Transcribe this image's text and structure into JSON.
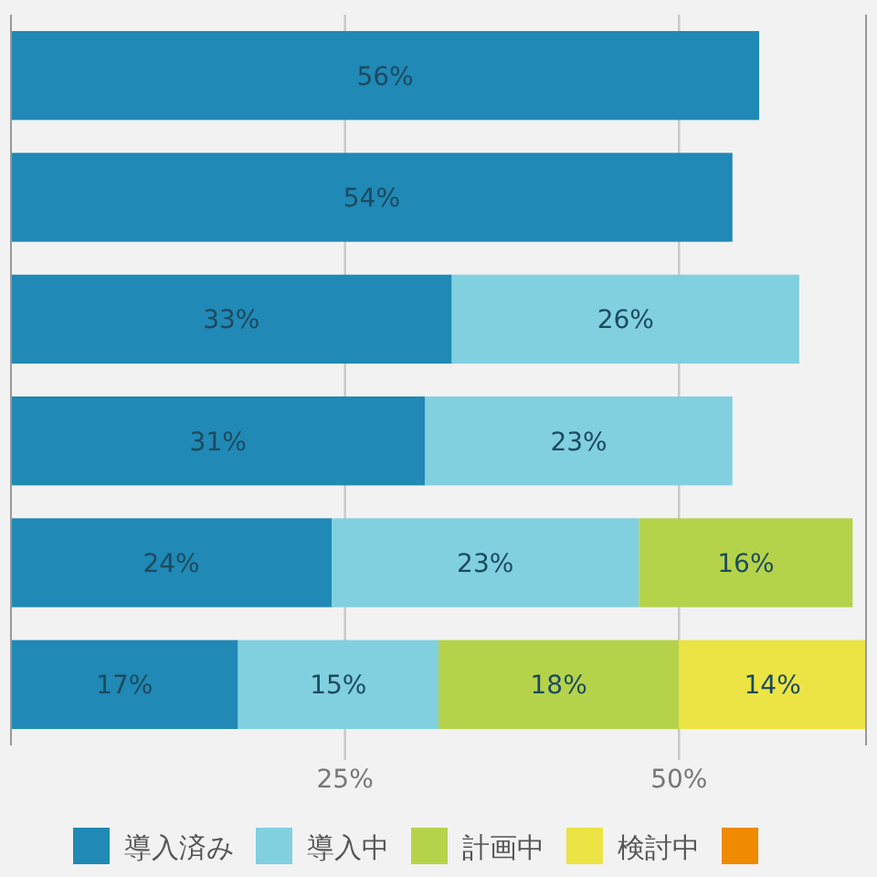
{
  "chart_data": {
    "type": "bar",
    "orientation": "horizontal",
    "stacked": true,
    "categories": [
      null,
      null,
      null,
      null,
      null,
      null
    ],
    "series": [
      {
        "name": "導入済み",
        "color": "#2089b5",
        "values": [
          56,
          54,
          33,
          31,
          24,
          17
        ],
        "value_labels": [
          "56%",
          "54%",
          "33%",
          "31%",
          "24%",
          "17%"
        ]
      },
      {
        "name": "導入中",
        "color": "#80d0e0",
        "values": [
          null,
          null,
          26,
          23,
          23,
          15
        ],
        "value_labels": [
          null,
          null,
          "26%",
          "23%",
          "23%",
          "15%"
        ]
      },
      {
        "name": "計画中",
        "color": "#b5d34a",
        "values": [
          null,
          null,
          null,
          null,
          16,
          18
        ],
        "value_labels": [
          null,
          null,
          null,
          null,
          "16%",
          "18%"
        ]
      },
      {
        "name": "検討中",
        "color": "#ebe444",
        "values": [
          null,
          null,
          null,
          null,
          null,
          14
        ],
        "value_labels": [
          null,
          null,
          null,
          null,
          null,
          "14%"
        ]
      },
      {
        "color": "#f08a00",
        "values": [
          null,
          null,
          null,
          null,
          null,
          null
        ]
      }
    ],
    "xlim": [
      0,
      64
    ],
    "xticks": [
      {
        "value": 25,
        "label": "25%"
      },
      {
        "value": 50,
        "label": "50%"
      }
    ],
    "grid": "x",
    "legend": "bottom"
  }
}
